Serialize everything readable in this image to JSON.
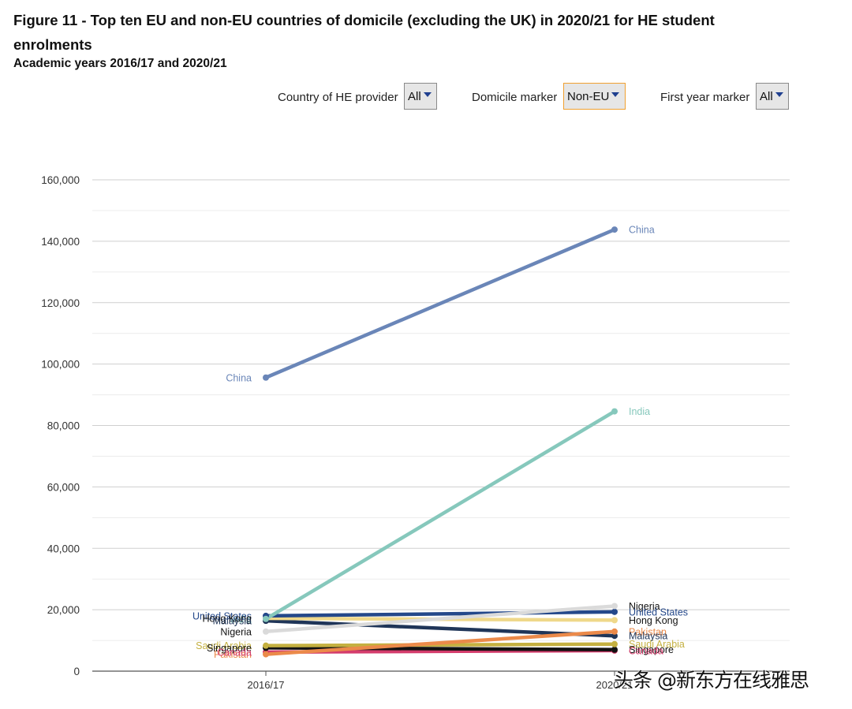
{
  "header": {
    "title": "Figure 11 - Top ten EU and non-EU countries of domicile (excluding the UK) in 2020/21 for HE student enrolments",
    "subtitle": "Academic years 2016/17 and 2020/21"
  },
  "filters": {
    "provider_label": "Country of HE provider",
    "provider_value": "All",
    "domicile_label": "Domicile marker",
    "domicile_value": "Non-EU",
    "first_year_label": "First year marker",
    "first_year_value": "All"
  },
  "watermark": "头条 @新东方在线雅思",
  "chart_data": {
    "type": "line",
    "x": [
      "2016/17",
      "2020/21"
    ],
    "ylim": [
      0,
      160000
    ],
    "yticks": [
      0,
      20000,
      40000,
      60000,
      80000,
      100000,
      120000,
      140000,
      160000
    ],
    "ytick_labels": [
      "0",
      "20,000",
      "40,000",
      "60,000",
      "80,000",
      "100,000",
      "120,000",
      "140,000",
      "160,000"
    ],
    "grid": true,
    "series": [
      {
        "name": "China",
        "values": [
          95600,
          143800
        ],
        "color": "#6a86b8"
      },
      {
        "name": "India",
        "values": [
          17000,
          84600
        ],
        "color": "#86c8bc"
      },
      {
        "name": "Nigeria",
        "values": [
          12900,
          21200
        ],
        "color": "#dadada"
      },
      {
        "name": "United States",
        "values": [
          18000,
          19300
        ],
        "color": "#24488a"
      },
      {
        "name": "Hong Kong",
        "values": [
          17200,
          16600
        ],
        "color": "#efd88a"
      },
      {
        "name": "Pakistan",
        "values": [
          5500,
          12900
        ],
        "color": "#eb8a4a"
      },
      {
        "name": "Malaysia",
        "values": [
          16400,
          11500
        ],
        "color": "#1f3558"
      },
      {
        "name": "Saudi Arabia",
        "values": [
          8300,
          8800
        ],
        "color": "#c4b040"
      },
      {
        "name": "Singapore",
        "values": [
          7600,
          7000
        ],
        "color": "#111111"
      },
      {
        "name": "Canada",
        "values": [
          6200,
          6700
        ],
        "color": "#d43c6c"
      }
    ]
  }
}
